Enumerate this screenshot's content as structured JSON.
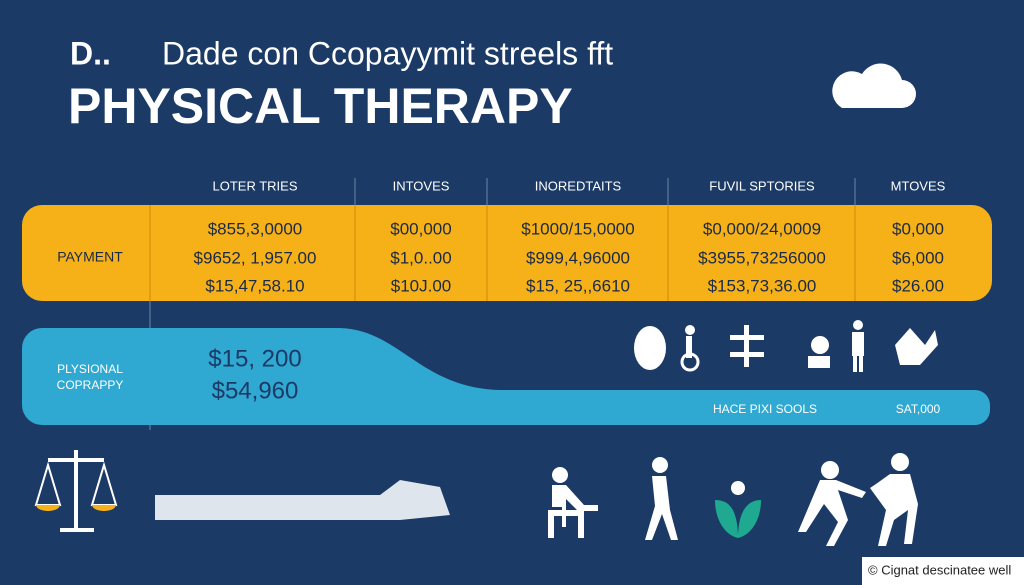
{
  "header": {
    "subtitle": "D..",
    "title_line": "Dade con Ccopayymit streels fft",
    "title": "PHYSICAL THERAPY"
  },
  "table": {
    "columns": [
      "LOTER TRIES",
      "INTOVES",
      "INOREDTAITS",
      "FUVIL SPTORIES",
      "MTOVES"
    ],
    "payment": {
      "label": "PAYMENT",
      "cells": [
        [
          "$855,3,0000",
          "$9652, 1,957.00",
          "$15,47,58.10"
        ],
        [
          "$00,000",
          "$1,0..00",
          "$10J.00"
        ],
        [
          "$1000/15,0000",
          "$999,4,96000",
          "$15, 25,,6610"
        ],
        [
          "$0,000/24,0009",
          "$3955,73256000",
          "$153,73,36.00"
        ],
        [
          "$0,000",
          "$6,000",
          "$26.00"
        ]
      ]
    },
    "copay": {
      "label_lines": [
        "PLYSIONAL",
        "COPRAPPY"
      ],
      "amounts": [
        "$15, 200",
        "$54,960"
      ],
      "notes": [
        "HACE PIXI SOOLS",
        "SAT,000"
      ]
    }
  },
  "footer": {
    "credit": "© Cignat  descinatee well"
  }
}
